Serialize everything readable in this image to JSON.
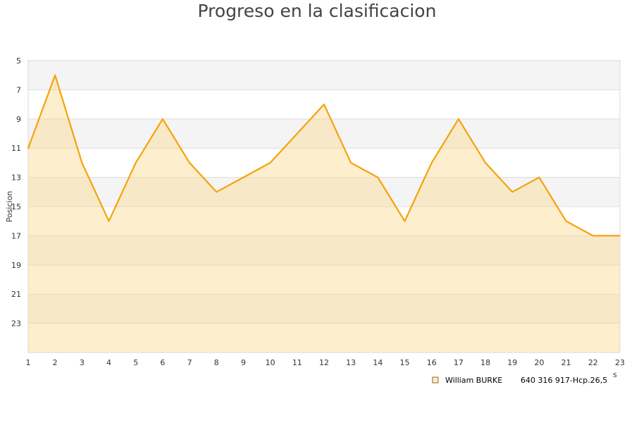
{
  "chart_data": {
    "type": "area",
    "title": "Progreso en la clasificacion",
    "ylabel": "Posicion",
    "xlabel": "s",
    "x": [
      1,
      2,
      3,
      4,
      5,
      6,
      7,
      8,
      9,
      10,
      11,
      12,
      13,
      14,
      15,
      16,
      17,
      18,
      19,
      20,
      21,
      22,
      23
    ],
    "series": [
      {
        "name": "William BURKE",
        "detail": "640 316 917-Hcp.26,5",
        "values": [
          11,
          6,
          12,
          16,
          12,
          9,
          12,
          14,
          13,
          12,
          10,
          8,
          12,
          13,
          16,
          12,
          9,
          12,
          14,
          13,
          16,
          17,
          17
        ]
      }
    ],
    "ylim": [
      5,
      25
    ],
    "y_inverted": true,
    "yticks": [
      5,
      7,
      9,
      11,
      13,
      15,
      17,
      19,
      21,
      23
    ],
    "grid": true,
    "legend_position": "bottom-right",
    "colors": {
      "line": "#f5a30a",
      "fill": "#fdebc6",
      "band_light": "#f4f4f4",
      "band_dark": "#e4e4e4"
    }
  }
}
